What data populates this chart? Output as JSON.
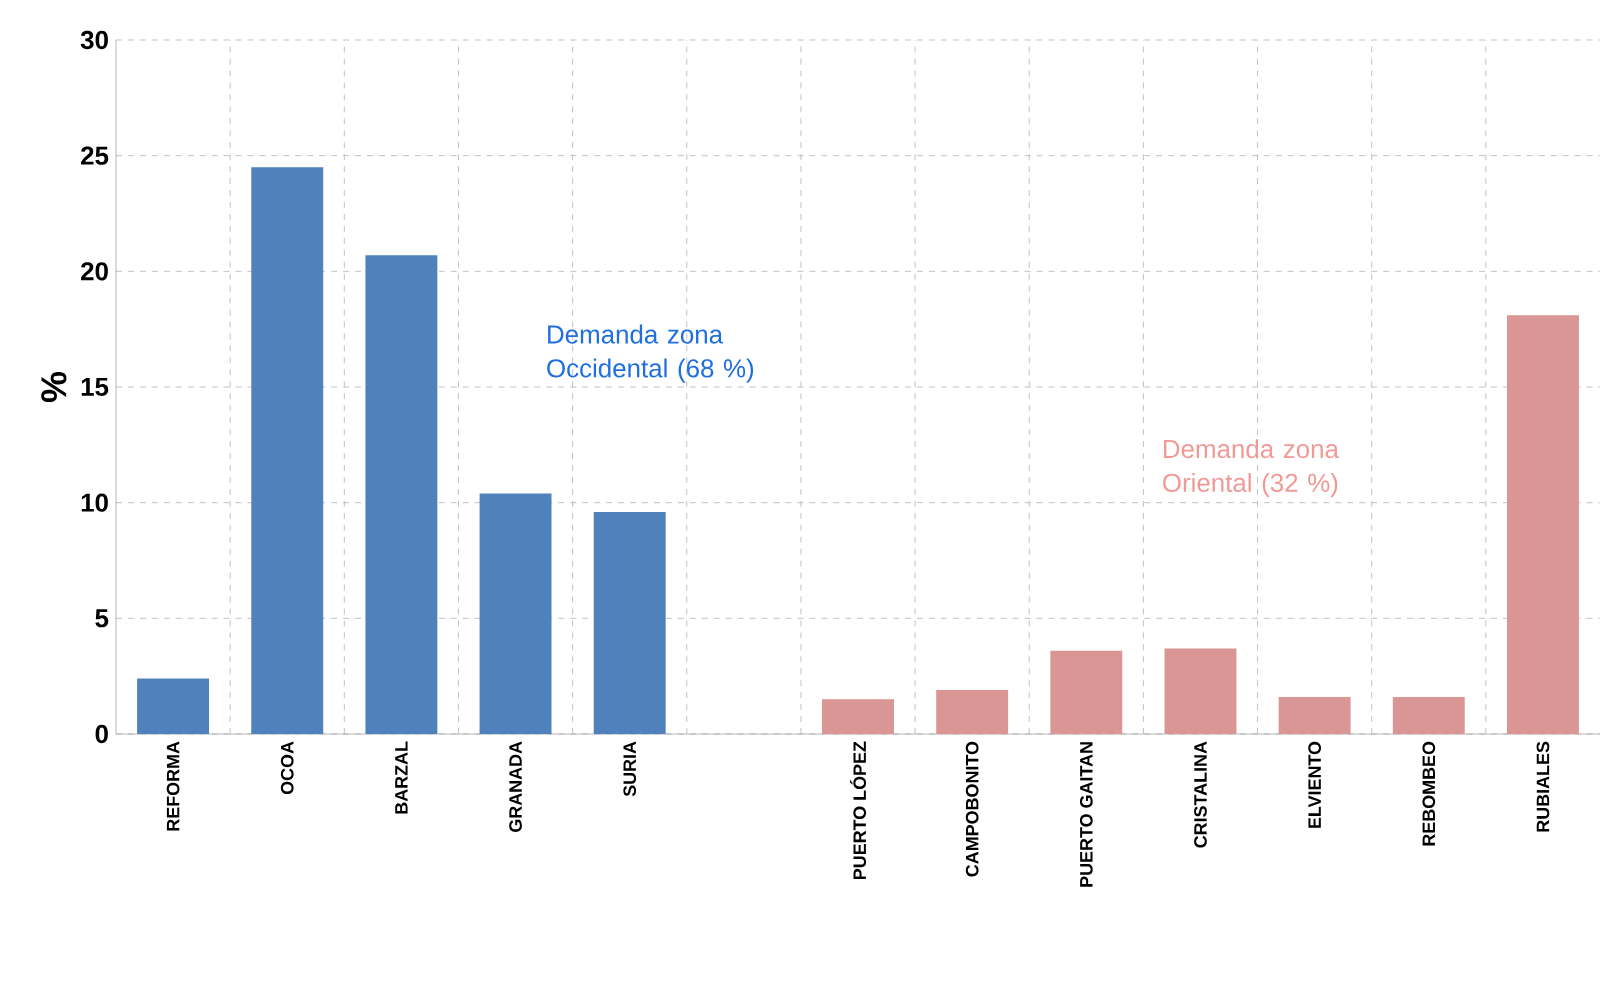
{
  "chart_data": {
    "type": "bar",
    "ylabel": "%",
    "categories": [
      "REFORMA",
      "OCOA",
      "BARZAL",
      "GRANADA",
      "SURIA",
      null,
      "PUERTO LÓPEZ",
      "CAMPOBONITO",
      "PUERTO GAITAN",
      "CRISTALINA",
      "ELVIENTO",
      "REBOMBEO",
      "RUBIALES"
    ],
    "values": [
      2.4,
      24.5,
      20.7,
      10.4,
      9.6,
      null,
      1.5,
      1.9,
      3.6,
      3.7,
      1.6,
      1.6,
      18.1
    ],
    "colors": [
      "#4f81bd",
      "#4f81bd",
      "#4f81bd",
      "#4f81bd",
      "#4f81bd",
      "#4f81bd",
      "#d99694",
      "#d99694",
      "#d99694",
      "#d99694",
      "#d99694",
      "#d99694",
      "#d99694"
    ],
    "ylim": [
      0,
      30
    ],
    "yticks": [
      0,
      5,
      10,
      15,
      20,
      25,
      30
    ],
    "grid": true,
    "annotations": [
      "Demanda zona Occidental (68 %)",
      "Demanda zona Oriental (32 %)"
    ]
  }
}
